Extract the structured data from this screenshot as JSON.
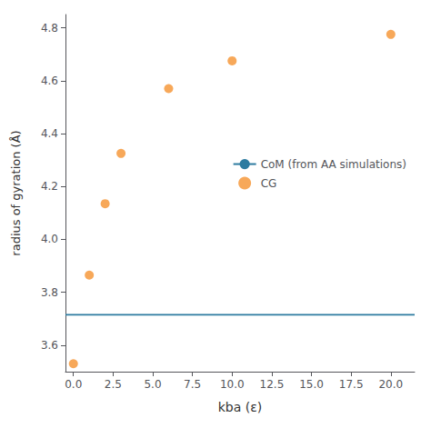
{
  "chart_data": {
    "type": "scatter",
    "x": [
      0.0,
      1.0,
      2.0,
      3.0,
      6.0,
      10.0,
      20.0
    ],
    "series": [
      {
        "name": "CoM (from AA simulations)",
        "type": "hline",
        "color": "#2d7ba0",
        "value": 3.715
      },
      {
        "name": "CG",
        "type": "scatter",
        "color": "#f5922f",
        "marker": "circle",
        "values": [
          3.53,
          3.865,
          4.135,
          4.325,
          4.57,
          4.675,
          4.775
        ]
      }
    ],
    "xlabel": "kba (ε)",
    "ylabel": "radius of gyration (Å)",
    "xlim": [
      -0.5,
      21.5
    ],
    "ylim": [
      3.5,
      4.85
    ],
    "xticks": [
      {
        "value": 0,
        "label": "0.0"
      },
      2.5,
      {
        "value": 5,
        "label": "5.0"
      },
      7.5,
      {
        "value": 10,
        "label": "10.0"
      },
      12.5,
      {
        "value": 15,
        "label": "15.0"
      },
      17.5,
      {
        "value": 20,
        "label": "20.0"
      }
    ],
    "yticks": [
      3.6,
      3.8,
      {
        "value": 4,
        "label": "4.0"
      },
      4.2,
      4.4,
      4.6,
      4.8
    ],
    "grid": false,
    "legend": "right"
  }
}
